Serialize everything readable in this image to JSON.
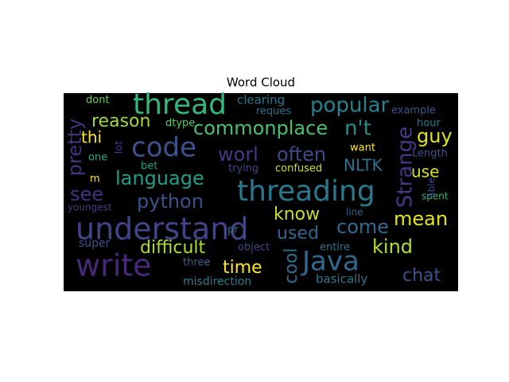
{
  "chart_data": {
    "type": "wordcloud",
    "title": "Word Cloud",
    "background": "#000000",
    "words": [
      {
        "text": "thread",
        "color": "#35b779"
      },
      {
        "text": "threading",
        "color": "#2a788e"
      },
      {
        "text": "understand",
        "color": "#414487"
      },
      {
        "text": "write",
        "color": "#482878"
      },
      {
        "text": "Java",
        "color": "#31688e"
      },
      {
        "text": "code",
        "color": "#3b528b"
      },
      {
        "text": "popular",
        "color": "#26828e"
      },
      {
        "text": "commonplace",
        "color": "#4ac16d"
      },
      {
        "text": "n't",
        "color": "#21918c"
      },
      {
        "text": "reason",
        "color": "#a0da39"
      },
      {
        "text": "thi",
        "color": "#fde725"
      },
      {
        "text": "guy",
        "color": "#dde318"
      },
      {
        "text": "worl",
        "color": "#443983"
      },
      {
        "text": "often",
        "color": "#3e4a89"
      },
      {
        "text": "language",
        "color": "#1f9e89"
      },
      {
        "text": "NLTK",
        "color": "#2c728e"
      },
      {
        "text": "use",
        "color": "#d8e219"
      },
      {
        "text": "see",
        "color": "#46327e"
      },
      {
        "text": "python",
        "color": "#3b528b"
      },
      {
        "text": "know",
        "color": "#c2df23"
      },
      {
        "text": "mean",
        "color": "#e5e419"
      },
      {
        "text": "come",
        "color": "#31688e"
      },
      {
        "text": "used",
        "color": "#31688e"
      },
      {
        "text": "difficult",
        "color": "#addc30"
      },
      {
        "text": "kind",
        "color": "#b8de29"
      },
      {
        "text": "time",
        "color": "#fde725"
      },
      {
        "text": "chat",
        "color": "#3b528b"
      },
      {
        "text": "basically",
        "color": "#2a788e"
      },
      {
        "text": "misdirection",
        "color": "#287d8e"
      },
      {
        "text": "three",
        "color": "#33638d"
      },
      {
        "text": "object",
        "color": "#404688"
      },
      {
        "text": "super",
        "color": "#3b528b"
      },
      {
        "text": "pr",
        "color": "#2c728e"
      },
      {
        "text": "youngest",
        "color": "#443a83"
      },
      {
        "text": "line",
        "color": "#355f8d"
      },
      {
        "text": "spent",
        "color": "#35b779"
      },
      {
        "text": "able",
        "color": "#3e4a89"
      },
      {
        "text": "Length",
        "color": "#3b528b"
      },
      {
        "text": "hour",
        "color": "#2a788e"
      },
      {
        "text": "example",
        "color": "#39558c"
      },
      {
        "text": "want",
        "color": "#fde725"
      },
      {
        "text": "confused",
        "color": "#d0e11c"
      },
      {
        "text": "trying",
        "color": "#3e4989"
      },
      {
        "text": "entire",
        "color": "#2d708e"
      },
      {
        "text": "bet",
        "color": "#1fa188"
      },
      {
        "text": "one",
        "color": "#21a685"
      },
      {
        "text": "m",
        "color": "#fde725"
      },
      {
        "text": "lot",
        "color": "#443b84"
      },
      {
        "text": "dtype",
        "color": "#5ec962"
      },
      {
        "text": "dont",
        "color": "#6ccd5a"
      },
      {
        "text": "clearing",
        "color": "#2a788e"
      },
      {
        "text": "reques",
        "color": "#2c728e"
      },
      {
        "text": "pretty",
        "color": "#46327e"
      },
      {
        "text": "Strange",
        "color": "#443983"
      },
      {
        "text": "cool",
        "color": "#2e6e8e"
      }
    ]
  }
}
